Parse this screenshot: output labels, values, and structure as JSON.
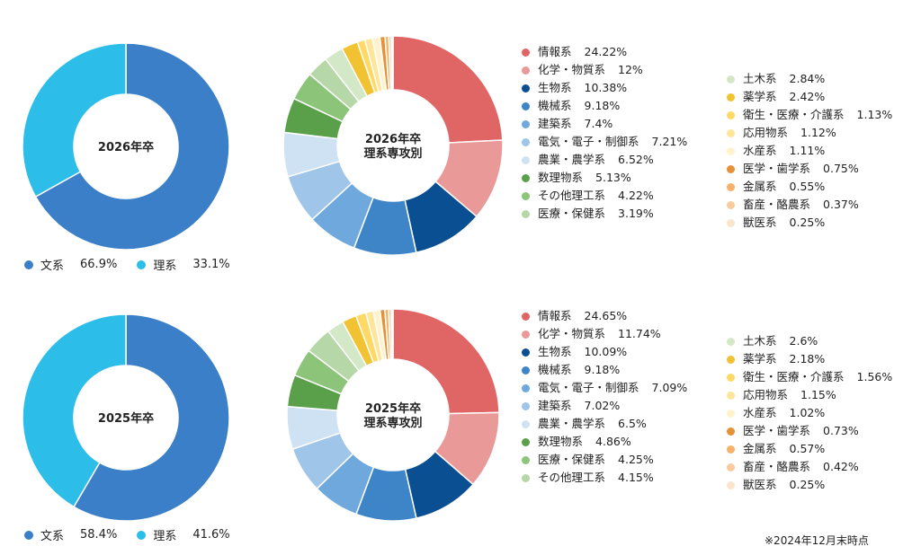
{
  "colors": {
    "bunkei": "#3a7fc8",
    "rikei": "#2cbde8"
  },
  "footnote": "※2024年12月末時点",
  "chart_data": [
    {
      "type": "pie",
      "center": "2026年卒",
      "slices": [
        {
          "label": "文系",
          "value": 66.9,
          "display": "66.9%",
          "color": "#3a7fc8"
        },
        {
          "label": "理系",
          "value": 33.1,
          "display": "33.1%",
          "color": "#2cbde8"
        }
      ]
    },
    {
      "type": "pie",
      "center": [
        "2026年卒",
        "理系専攻別"
      ],
      "slices": [
        {
          "label": "情報系",
          "value": 24.22,
          "display": "24.22%",
          "color": "#e06666"
        },
        {
          "label": "化学・物質系",
          "value": 12,
          "display": "12%",
          "color": "#ea9999"
        },
        {
          "label": "生物系",
          "value": 10.38,
          "display": "10.38%",
          "color": "#0b4f93"
        },
        {
          "label": "機械系",
          "value": 9.18,
          "display": "9.18%",
          "color": "#3d85c6"
        },
        {
          "label": "建築系",
          "value": 7.4,
          "display": "7.4%",
          "color": "#6fa8dc"
        },
        {
          "label": "電気・電子・制御系",
          "value": 7.21,
          "display": "7.21%",
          "color": "#9fc5e8"
        },
        {
          "label": "農業・農学系",
          "value": 6.52,
          "display": "6.52%",
          "color": "#cfe2f3"
        },
        {
          "label": "数理物系",
          "value": 5.13,
          "display": "5.13%",
          "color": "#5aa04a"
        },
        {
          "label": "その他理工系",
          "value": 4.22,
          "display": "4.22%",
          "color": "#8cc47a"
        },
        {
          "label": "医療・保健系",
          "value": 3.19,
          "display": "3.19%",
          "color": "#b6d7a8"
        },
        {
          "label": "土木系",
          "value": 2.84,
          "display": "2.84%",
          "color": "#d3e8c6"
        },
        {
          "label": "薬学系",
          "value": 2.42,
          "display": "2.42%",
          "color": "#f1c232"
        },
        {
          "label": "衛生・医療・介護系",
          "value": 1.13,
          "display": "1.13%",
          "color": "#ffd966"
        },
        {
          "label": "応用物系",
          "value": 1.12,
          "display": "1.12%",
          "color": "#ffe599"
        },
        {
          "label": "水産系",
          "value": 1.11,
          "display": "1.11%",
          "color": "#fff2cc"
        },
        {
          "label": "医学・歯学系",
          "value": 0.75,
          "display": "0.75%",
          "color": "#e69138"
        },
        {
          "label": "金属系",
          "value": 0.55,
          "display": "0.55%",
          "color": "#f6b26b"
        },
        {
          "label": "畜産・酪農系",
          "value": 0.37,
          "display": "0.37%",
          "color": "#f9cb9c"
        },
        {
          "label": "獣医系",
          "value": 0.25,
          "display": "0.25%",
          "color": "#fce5cd"
        }
      ]
    },
    {
      "type": "pie",
      "center": "2025年卒",
      "slices": [
        {
          "label": "文系",
          "value": 58.4,
          "display": "58.4%",
          "color": "#3a7fc8"
        },
        {
          "label": "理系",
          "value": 41.6,
          "display": "41.6%",
          "color": "#2cbde8"
        }
      ]
    },
    {
      "type": "pie",
      "center": [
        "2025年卒",
        "理系専攻別"
      ],
      "slices": [
        {
          "label": "情報系",
          "value": 24.65,
          "display": "24.65%",
          "color": "#e06666"
        },
        {
          "label": "化学・物質系",
          "value": 11.74,
          "display": "11.74%",
          "color": "#ea9999"
        },
        {
          "label": "生物系",
          "value": 10.09,
          "display": "10.09%",
          "color": "#0b4f93"
        },
        {
          "label": "機械系",
          "value": 9.18,
          "display": "9.18%",
          "color": "#3d85c6"
        },
        {
          "label": "電気・電子・制御系",
          "value": 7.09,
          "display": "7.09%",
          "color": "#6fa8dc"
        },
        {
          "label": "建築系",
          "value": 7.02,
          "display": "7.02%",
          "color": "#9fc5e8"
        },
        {
          "label": "農業・農学系",
          "value": 6.5,
          "display": "6.5%",
          "color": "#cfe2f3"
        },
        {
          "label": "数理物系",
          "value": 4.86,
          "display": "4.86%",
          "color": "#5aa04a"
        },
        {
          "label": "医療・保健系",
          "value": 4.25,
          "display": "4.25%",
          "color": "#8cc47a"
        },
        {
          "label": "その他理工系",
          "value": 4.15,
          "display": "4.15%",
          "color": "#b6d7a8"
        },
        {
          "label": "土木系",
          "value": 2.6,
          "display": "2.6%",
          "color": "#d3e8c6"
        },
        {
          "label": "薬学系",
          "value": 2.18,
          "display": "2.18%",
          "color": "#f1c232"
        },
        {
          "label": "衛生・医療・介護系",
          "value": 1.56,
          "display": "1.56%",
          "color": "#ffd966"
        },
        {
          "label": "応用物系",
          "value": 1.15,
          "display": "1.15%",
          "color": "#ffe599"
        },
        {
          "label": "水産系",
          "value": 1.02,
          "display": "1.02%",
          "color": "#fff2cc"
        },
        {
          "label": "医学・歯学系",
          "value": 0.73,
          "display": "0.73%",
          "color": "#e69138"
        },
        {
          "label": "金属系",
          "value": 0.57,
          "display": "0.57%",
          "color": "#f6b26b"
        },
        {
          "label": "畜産・酪農系",
          "value": 0.42,
          "display": "0.42%",
          "color": "#f9cb9c"
        },
        {
          "label": "獣医系",
          "value": 0.25,
          "display": "0.25%",
          "color": "#fce5cd"
        }
      ]
    }
  ]
}
